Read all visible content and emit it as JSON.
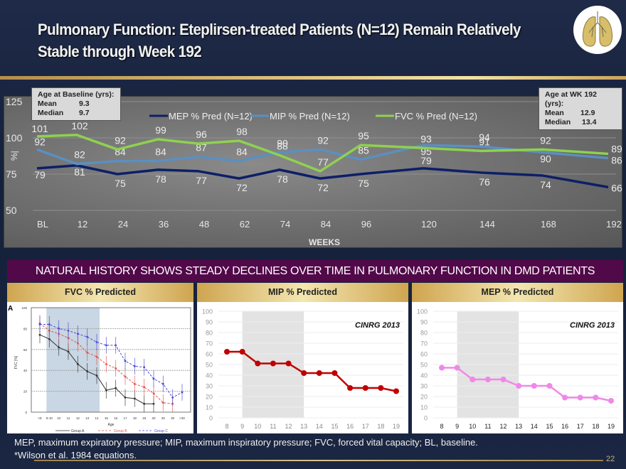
{
  "slide": {
    "title": "Pulmonary Function: Eteplirsen-treated Patients (N=12) Remain Relatively Stable through Week 192",
    "icon": "lungs-icon",
    "banner": "NATURAL HISTORY SHOWS STEADY DECLINES OVER TIME IN PULMONARY FUNCTION IN DMD PATIENTS",
    "footnote_1": "MEP, maximum expiratory pressure; MIP, maximum inspiratory pressure; FVC, forced vital capacity; BL, baseline.",
    "footnote_2": "*Wilson et al. 1984 equations.",
    "page_number": "22",
    "colors": {
      "background": "#1a2642",
      "banner": "#520949",
      "gold": "#cfa550",
      "mep": "#0d1f66",
      "mip": "#5b8fc0",
      "fvc": "#8fd14f"
    }
  },
  "baseline_box": {
    "title": "Age at Baseline (yrs):",
    "rows": [
      {
        "label": "Mean",
        "value": "9.3"
      },
      {
        "label": "Median",
        "value": "9.7"
      }
    ]
  },
  "wk192_box": {
    "title": "Age at WK 192 (yrs):",
    "rows": [
      {
        "label": "Mean",
        "value": "12.9"
      },
      {
        "label": "Median",
        "value": "13.4"
      }
    ]
  },
  "panels": {
    "fvc": {
      "header": "FVC % Predicted"
    },
    "mip": {
      "header": "MIP % Predicted"
    },
    "mep": {
      "header": "MEP % Predicted"
    }
  },
  "chart_data": [
    {
      "type": "line",
      "title": "",
      "xlabel": "WEEKS",
      "ylabel": "%|",
      "categories": [
        "BL",
        "12",
        "24",
        "36",
        "48",
        "62",
        "74",
        "84",
        "96",
        "120",
        "144",
        "168",
        "192"
      ],
      "ylim": [
        50,
        125
      ],
      "yticks": [
        50,
        75,
        100,
        125
      ],
      "grid": true,
      "legend": "top-center",
      "series": [
        {
          "name": "MEP % Pred (N=12)",
          "color": "#0d1f66",
          "values": [
            79,
            81,
            75,
            78,
            77,
            72,
            78,
            72,
            75,
            79,
            76,
            74,
            66
          ]
        },
        {
          "name": "MIP  % Pred (N=12)",
          "color": "#5b8fc0",
          "values": [
            92,
            82,
            84,
            84,
            87,
            84,
            90,
            92,
            85,
            95,
            94,
            90,
            86
          ]
        },
        {
          "name": "FVC  % Pred (N=12)",
          "color": "#8fd14f",
          "values": [
            101,
            102,
            92,
            99,
            96,
            98,
            88,
            77,
            95,
            93,
            91,
            92,
            89
          ]
        }
      ]
    },
    {
      "type": "line",
      "title": "FVC % Predicted",
      "panel_label": "A",
      "xlabel": "Age",
      "ylabel": "FVC [%]",
      "categories": [
        "<8",
        "8-10",
        "10",
        "11",
        "12",
        "13",
        "14",
        "15",
        "16",
        "17",
        "18",
        "19",
        "20",
        "25",
        "30",
        ">40"
      ],
      "ylim": [
        0,
        100
      ],
      "yticks": [
        0,
        20,
        40,
        60,
        80,
        100
      ],
      "shaded_range": [
        "8-10",
        "14"
      ],
      "legend": "bottom",
      "series": [
        {
          "name": "Group A",
          "color": "#333333",
          "values": [
            74,
            70,
            62,
            58,
            46,
            39,
            35,
            21,
            23,
            14,
            13,
            8,
            8,
            null,
            null,
            null
          ]
        },
        {
          "name": "Group B",
          "color": "#e0554a",
          "values": [
            85,
            78,
            75,
            71,
            66,
            57,
            53,
            46,
            42,
            34,
            27,
            24,
            18,
            9,
            8,
            null
          ]
        },
        {
          "name": "Group C",
          "color": "#4a4ad6",
          "values": [
            84,
            84,
            80,
            78,
            75,
            72,
            67,
            64,
            64,
            49,
            44,
            43,
            32,
            27,
            14,
            19
          ]
        }
      ]
    },
    {
      "type": "line",
      "title": "MIP % Predicted",
      "annotation": "CINRG 2013",
      "xlabel": "",
      "ylabel": "",
      "categories": [
        "8",
        "9",
        "10",
        "11",
        "12",
        "13",
        "14",
        "15",
        "16",
        "17",
        "18",
        "19"
      ],
      "ylim": [
        0,
        100
      ],
      "yticks": [
        0,
        10,
        20,
        30,
        40,
        50,
        60,
        70,
        80,
        90,
        100
      ],
      "shaded_range": [
        "9",
        "13"
      ],
      "series": [
        {
          "name": "MIP % Predicted",
          "color": "#c00000",
          "values": [
            62,
            62,
            51,
            51,
            51,
            42,
            42,
            42,
            28,
            28,
            28,
            25
          ]
        }
      ]
    },
    {
      "type": "line",
      "title": "MEP % Predicted",
      "annotation": "CINRG 2013",
      "xlabel": "",
      "ylabel": "",
      "categories": [
        "8",
        "9",
        "10",
        "11",
        "12",
        "13",
        "14",
        "15",
        "16",
        "17",
        "18",
        "19"
      ],
      "ylim": [
        0,
        100
      ],
      "yticks": [
        0,
        10,
        20,
        30,
        40,
        50,
        60,
        70,
        80,
        90,
        100
      ],
      "shaded_range": [
        "9",
        "13"
      ],
      "series": [
        {
          "name": "MEP % Predicted",
          "color": "#f088e8",
          "values": [
            47,
            47,
            36,
            36,
            36,
            30,
            30,
            30,
            19,
            19,
            19,
            16
          ]
        }
      ]
    }
  ]
}
